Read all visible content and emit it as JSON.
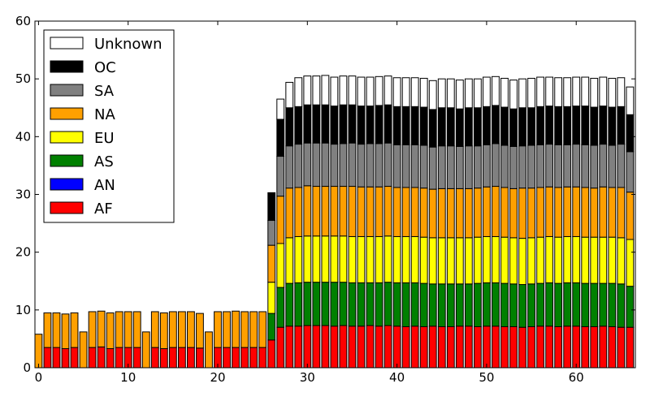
{
  "chart_data": {
    "type": "bar",
    "stacked": true,
    "x": [
      0,
      1,
      2,
      3,
      4,
      5,
      6,
      7,
      8,
      9,
      10,
      11,
      12,
      13,
      14,
      15,
      16,
      17,
      18,
      19,
      20,
      21,
      22,
      23,
      24,
      25,
      26,
      27,
      28,
      29,
      30,
      31,
      32,
      33,
      34,
      35,
      36,
      37,
      38,
      39,
      40,
      41,
      42,
      43,
      44,
      45,
      46,
      47,
      48,
      49,
      50,
      51,
      52,
      53,
      54,
      55,
      56,
      57,
      58,
      59,
      60,
      61,
      62,
      63,
      64,
      65,
      66
    ],
    "xlim": [
      -0.4,
      66.6
    ],
    "ylim": [
      0,
      60
    ],
    "xticks": [
      "0",
      "10",
      "20",
      "30",
      "40",
      "50",
      "60"
    ],
    "yticks": [
      "0",
      "10",
      "20",
      "30",
      "40",
      "50",
      "60"
    ],
    "grid": false,
    "legend_position": "top-left",
    "series": [
      {
        "name": "AF",
        "color": "#ff0000",
        "values": [
          0,
          3.5,
          3.5,
          3.3,
          3.5,
          0,
          3.5,
          3.6,
          3.3,
          3.5,
          3.5,
          3.5,
          0,
          3.5,
          3.3,
          3.5,
          3.5,
          3.5,
          3.4,
          0,
          3.5,
          3.5,
          3.5,
          3.5,
          3.5,
          3.5,
          4.8,
          7.0,
          7.2,
          7.2,
          7.3,
          7.3,
          7.3,
          7.2,
          7.3,
          7.2,
          7.2,
          7.3,
          7.2,
          7.3,
          7.2,
          7.1,
          7.2,
          7.1,
          7.2,
          7.1,
          7.1,
          7.2,
          7.2,
          7.1,
          7.2,
          7.2,
          7.1,
          7.1,
          7.0,
          7.1,
          7.2,
          7.2,
          7.1,
          7.2,
          7.2,
          7.1,
          7.1,
          7.2,
          7.1,
          7.0,
          7.0
        ]
      },
      {
        "name": "AN",
        "color": "#0000ff",
        "values": [
          0,
          0,
          0,
          0,
          0,
          0,
          0,
          0,
          0,
          0,
          0,
          0,
          0,
          0,
          0,
          0,
          0,
          0,
          0,
          0,
          0,
          0,
          0,
          0,
          0,
          0,
          0,
          0,
          0,
          0,
          0,
          0,
          0,
          0,
          0,
          0,
          0,
          0,
          0,
          0,
          0,
          0,
          0,
          0,
          0,
          0,
          0,
          0,
          0,
          0,
          0,
          0,
          0,
          0,
          0,
          0,
          0,
          0,
          0,
          0,
          0,
          0,
          0,
          0,
          0,
          0,
          0
        ]
      },
      {
        "name": "AS",
        "color": "#008000",
        "values": [
          0,
          0,
          0,
          0,
          0,
          0,
          0,
          0,
          0,
          0,
          0,
          0,
          0,
          0,
          0,
          0,
          0,
          0,
          0,
          0,
          0,
          0,
          0,
          0,
          0,
          0,
          4.6,
          6.9,
          7.4,
          7.5,
          7.5,
          7.5,
          7.5,
          7.6,
          7.5,
          7.5,
          7.5,
          7.4,
          7.5,
          7.5,
          7.5,
          7.6,
          7.5,
          7.5,
          7.3,
          7.4,
          7.4,
          7.3,
          7.3,
          7.5,
          7.5,
          7.5,
          7.5,
          7.4,
          7.4,
          7.4,
          7.4,
          7.5,
          7.5,
          7.5,
          7.5,
          7.5,
          7.5,
          7.4,
          7.5,
          7.5,
          7.1
        ]
      },
      {
        "name": "EU",
        "color": "#ffff00",
        "values": [
          0,
          0,
          0,
          0,
          0,
          0,
          0,
          0,
          0,
          0,
          0,
          0,
          0,
          0,
          0,
          0,
          0,
          0,
          0,
          0,
          0,
          0,
          0,
          0,
          0,
          0,
          5.4,
          7.6,
          7.9,
          8.0,
          8.0,
          8.0,
          8.0,
          8.0,
          8.0,
          8.0,
          8.0,
          8.0,
          8.0,
          8.0,
          8.0,
          8.0,
          8.0,
          8.0,
          8.0,
          8.0,
          8.0,
          8.0,
          8.0,
          8.0,
          8.0,
          8.0,
          8.0,
          8.0,
          8.0,
          8.0,
          8.0,
          8.0,
          8.0,
          8.0,
          8.0,
          8.0,
          8.0,
          8.0,
          8.0,
          8.0,
          8.1
        ]
      },
      {
        "name": "NA",
        "color": "#ffa000",
        "values": [
          5.8,
          6.0,
          6.0,
          6.0,
          6.0,
          6.2,
          6.2,
          6.2,
          6.2,
          6.2,
          6.2,
          6.2,
          6.2,
          6.2,
          6.2,
          6.2,
          6.2,
          6.2,
          6.0,
          6.2,
          6.2,
          6.2,
          6.3,
          6.2,
          6.2,
          6.2,
          6.4,
          8.2,
          8.6,
          8.5,
          8.7,
          8.6,
          8.6,
          8.6,
          8.6,
          8.7,
          8.6,
          8.6,
          8.6,
          8.6,
          8.5,
          8.5,
          8.5,
          8.5,
          8.4,
          8.5,
          8.5,
          8.5,
          8.5,
          8.5,
          8.6,
          8.7,
          8.6,
          8.5,
          8.7,
          8.6,
          8.6,
          8.6,
          8.6,
          8.6,
          8.6,
          8.6,
          8.5,
          8.7,
          8.6,
          8.7,
          8.2
        ]
      },
      {
        "name": "SA",
        "color": "#808080",
        "values": [
          0,
          0,
          0,
          0,
          0,
          0,
          0,
          0,
          0,
          0,
          0,
          0,
          0,
          0,
          0,
          0,
          0,
          0,
          0,
          0,
          0,
          0,
          0,
          0,
          0,
          0,
          4.3,
          6.9,
          7.3,
          7.5,
          7.4,
          7.5,
          7.5,
          7.3,
          7.4,
          7.5,
          7.4,
          7.5,
          7.5,
          7.5,
          7.4,
          7.4,
          7.4,
          7.4,
          7.3,
          7.4,
          7.4,
          7.3,
          7.4,
          7.3,
          7.3,
          7.4,
          7.3,
          7.3,
          7.3,
          7.4,
          7.4,
          7.4,
          7.4,
          7.3,
          7.4,
          7.4,
          7.4,
          7.4,
          7.3,
          7.5,
          7.0
        ]
      },
      {
        "name": "OC",
        "color": "#000000",
        "values": [
          0,
          0,
          0,
          0,
          0,
          0,
          0,
          0,
          0,
          0,
          0,
          0,
          0,
          0,
          0,
          0,
          0,
          0,
          0,
          0,
          0,
          0,
          0,
          0,
          0,
          0,
          4.8,
          6.4,
          6.6,
          6.5,
          6.6,
          6.6,
          6.6,
          6.6,
          6.7,
          6.6,
          6.6,
          6.5,
          6.6,
          6.6,
          6.6,
          6.6,
          6.6,
          6.6,
          6.5,
          6.6,
          6.6,
          6.5,
          6.6,
          6.6,
          6.6,
          6.6,
          6.6,
          6.5,
          6.6,
          6.5,
          6.6,
          6.6,
          6.6,
          6.6,
          6.6,
          6.7,
          6.6,
          6.6,
          6.6,
          6.5,
          6.4
        ]
      },
      {
        "name": "Unknown",
        "color": "#ffffff",
        "values": [
          0,
          0,
          0,
          0,
          0,
          0,
          0,
          0,
          0,
          0,
          0,
          0,
          0,
          0,
          0,
          0,
          0,
          0,
          0,
          0,
          0,
          0,
          0,
          0,
          0,
          0,
          0,
          3.5,
          4.4,
          5.0,
          5.0,
          5.0,
          5.1,
          5.0,
          5.0,
          5.0,
          5.0,
          5.0,
          5.0,
          5.0,
          5.0,
          5.0,
          5.0,
          5.0,
          5.0,
          5.0,
          5.0,
          5.0,
          5.0,
          5.0,
          5.1,
          5.0,
          5.0,
          5.0,
          5.0,
          5.1,
          5.1,
          5.0,
          5.0,
          5.0,
          5.0,
          5.0,
          5.0,
          5.0,
          5.0,
          5.0,
          4.8
        ]
      }
    ]
  }
}
